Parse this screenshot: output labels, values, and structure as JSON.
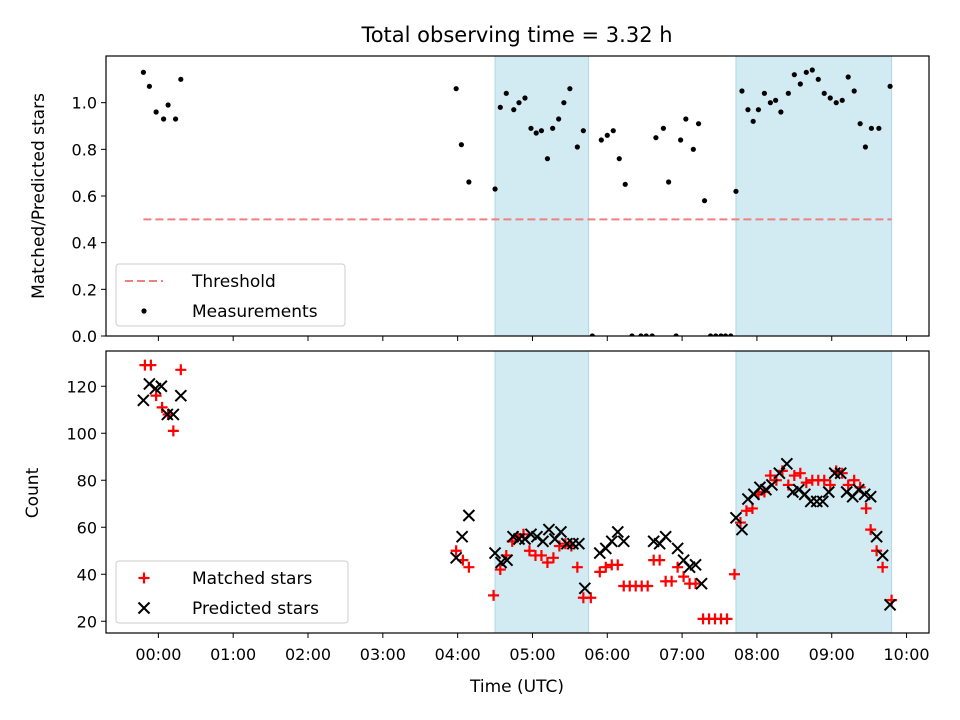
{
  "chart_data": {
    "title": "Total observing time = 3.32 h",
    "xlabel": "Time (UTC)",
    "xlim": [
      -0.7,
      10.3
    ],
    "xticks": [
      0,
      1,
      2,
      3,
      4,
      5,
      6,
      7,
      8,
      9,
      10
    ],
    "xtick_labels": [
      "00:00",
      "01:00",
      "02:00",
      "03:00",
      "04:00",
      "05:00",
      "06:00",
      "07:00",
      "08:00",
      "09:00",
      "10:00"
    ],
    "shaded_intervals": [
      [
        4.5,
        5.75
      ],
      [
        7.72,
        9.8
      ]
    ],
    "shade_color": "#add8e6",
    "panels": [
      {
        "type": "scatter",
        "ylabel": "Matched/Predicted stars",
        "ylim": [
          0,
          1.2
        ],
        "yticks": [
          0.0,
          0.2,
          0.4,
          0.6,
          0.8,
          1.0
        ],
        "ytick_labels": [
          "0.0",
          "0.2",
          "0.4",
          "0.6",
          "0.8",
          "1.0"
        ],
        "legend_position": "lower-left",
        "threshold": {
          "name": "Threshold",
          "y": 0.5,
          "x_range": [
            -0.2,
            9.8
          ],
          "color": "#f08080"
        },
        "series": [
          {
            "name": "Measurements",
            "color": "#000000",
            "marker": "dot",
            "points": [
              [
                -0.2,
                1.13
              ],
              [
                -0.12,
                1.07
              ],
              [
                -0.03,
                0.96
              ],
              [
                0.07,
                0.93
              ],
              [
                0.13,
                0.99
              ],
              [
                0.23,
                0.93
              ],
              [
                0.3,
                1.1
              ],
              [
                3.98,
                1.06
              ],
              [
                4.05,
                0.82
              ],
              [
                4.15,
                0.66
              ],
              [
                4.5,
                0.63
              ],
              [
                4.57,
                0.98
              ],
              [
                4.65,
                1.04
              ],
              [
                4.75,
                0.97
              ],
              [
                4.82,
                1.0
              ],
              [
                4.9,
                1.02
              ],
              [
                4.98,
                0.89
              ],
              [
                5.05,
                0.87
              ],
              [
                5.12,
                0.88
              ],
              [
                5.2,
                0.76
              ],
              [
                5.27,
                0.89
              ],
              [
                5.35,
                0.93
              ],
              [
                5.42,
                1.0
              ],
              [
                5.5,
                1.06
              ],
              [
                5.6,
                0.81
              ],
              [
                5.68,
                0.88
              ],
              [
                5.8,
                0.0
              ],
              [
                5.92,
                0.84
              ],
              [
                6.0,
                0.86
              ],
              [
                6.08,
                0.88
              ],
              [
                6.16,
                0.76
              ],
              [
                6.24,
                0.65
              ],
              [
                6.33,
                0.0
              ],
              [
                6.45,
                0.0
              ],
              [
                6.52,
                0.0
              ],
              [
                6.6,
                0.0
              ],
              [
                6.65,
                0.85
              ],
              [
                6.75,
                0.89
              ],
              [
                6.82,
                0.66
              ],
              [
                6.92,
                0.0
              ],
              [
                6.98,
                0.84
              ],
              [
                7.05,
                0.93
              ],
              [
                7.15,
                0.8
              ],
              [
                7.22,
                0.91
              ],
              [
                7.3,
                0.58
              ],
              [
                7.38,
                0.0
              ],
              [
                7.45,
                0.0
              ],
              [
                7.52,
                0.0
              ],
              [
                7.58,
                0.0
              ],
              [
                7.65,
                0.0
              ],
              [
                7.72,
                0.62
              ],
              [
                7.8,
                1.05
              ],
              [
                7.88,
                0.97
              ],
              [
                7.95,
                0.92
              ],
              [
                8.02,
                0.97
              ],
              [
                8.1,
                1.04
              ],
              [
                8.18,
                1.0
              ],
              [
                8.25,
                1.01
              ],
              [
                8.32,
                0.96
              ],
              [
                8.42,
                1.04
              ],
              [
                8.5,
                1.12
              ],
              [
                8.58,
                1.08
              ],
              [
                8.66,
                1.13
              ],
              [
                8.74,
                1.14
              ],
              [
                8.82,
                1.1
              ],
              [
                8.9,
                1.04
              ],
              [
                8.98,
                1.02
              ],
              [
                9.06,
                1.0
              ],
              [
                9.14,
                1.01
              ],
              [
                9.22,
                1.11
              ],
              [
                9.3,
                1.05
              ],
              [
                9.38,
                0.91
              ],
              [
                9.45,
                0.81
              ],
              [
                9.53,
                0.89
              ],
              [
                9.63,
                0.89
              ],
              [
                9.78,
                1.07
              ]
            ]
          }
        ]
      },
      {
        "type": "scatter",
        "ylabel": "Count",
        "ylim": [
          15,
          135
        ],
        "yticks": [
          20,
          40,
          60,
          80,
          100,
          120
        ],
        "ytick_labels": [
          "20",
          "40",
          "60",
          "80",
          "100",
          "120"
        ],
        "legend_position": "lower-left",
        "series": [
          {
            "name": "Matched stars",
            "color": "#ff0000",
            "marker": "plus",
            "points": [
              [
                -0.18,
                129
              ],
              [
                -0.1,
                129
              ],
              [
                -0.03,
                116
              ],
              [
                0.05,
                111
              ],
              [
                0.13,
                108
              ],
              [
                0.2,
                101
              ],
              [
                0.3,
                127
              ],
              [
                3.98,
                50
              ],
              [
                4.07,
                46
              ],
              [
                4.15,
                43
              ],
              [
                4.48,
                31
              ],
              [
                4.57,
                42
              ],
              [
                4.65,
                48
              ],
              [
                4.73,
                54
              ],
              [
                4.8,
                56
              ],
              [
                4.88,
                57
              ],
              [
                4.96,
                50
              ],
              [
                5.04,
                48
              ],
              [
                5.12,
                48
              ],
              [
                5.2,
                45
              ],
              [
                5.28,
                47
              ],
              [
                5.36,
                52
              ],
              [
                5.44,
                53
              ],
              [
                5.52,
                52
              ],
              [
                5.6,
                43
              ],
              [
                5.68,
                30
              ],
              [
                5.78,
                30
              ],
              [
                5.9,
                41
              ],
              [
                5.98,
                43
              ],
              [
                6.06,
                44
              ],
              [
                6.14,
                44
              ],
              [
                6.22,
                35
              ],
              [
                6.3,
                35
              ],
              [
                6.38,
                35
              ],
              [
                6.46,
                35
              ],
              [
                6.54,
                35
              ],
              [
                6.62,
                46
              ],
              [
                6.7,
                46
              ],
              [
                6.78,
                37
              ],
              [
                6.86,
                37
              ],
              [
                6.94,
                43
              ],
              [
                7.02,
                39
              ],
              [
                7.1,
                36
              ],
              [
                7.18,
                36
              ],
              [
                7.28,
                21
              ],
              [
                7.36,
                21
              ],
              [
                7.44,
                21
              ],
              [
                7.52,
                21
              ],
              [
                7.6,
                21
              ],
              [
                7.7,
                40
              ],
              [
                7.78,
                62
              ],
              [
                7.86,
                67
              ],
              [
                7.94,
                68
              ],
              [
                8.02,
                74
              ],
              [
                8.1,
                75
              ],
              [
                8.18,
                82
              ],
              [
                8.26,
                80
              ],
              [
                8.34,
                84
              ],
              [
                8.42,
                78
              ],
              [
                8.5,
                82
              ],
              [
                8.58,
                83
              ],
              [
                8.66,
                79
              ],
              [
                8.74,
                80
              ],
              [
                8.82,
                80
              ],
              [
                8.9,
                80
              ],
              [
                8.98,
                78
              ],
              [
                9.06,
                84
              ],
              [
                9.14,
                83
              ],
              [
                9.22,
                78
              ],
              [
                9.3,
                80
              ],
              [
                9.38,
                77
              ],
              [
                9.46,
                68
              ],
              [
                9.52,
                59
              ],
              [
                9.6,
                50
              ],
              [
                9.68,
                43
              ],
              [
                9.8,
                29
              ]
            ]
          },
          {
            "name": "Predicted stars",
            "color": "#000000",
            "marker": "x",
            "points": [
              [
                -0.2,
                114
              ],
              [
                -0.12,
                121
              ],
              [
                -0.04,
                119
              ],
              [
                0.04,
                120
              ],
              [
                0.12,
                108
              ],
              [
                0.2,
                108
              ],
              [
                0.3,
                116
              ],
              [
                3.98,
                47
              ],
              [
                4.06,
                56
              ],
              [
                4.15,
                65
              ],
              [
                4.5,
                49
              ],
              [
                4.58,
                45
              ],
              [
                4.66,
                46
              ],
              [
                4.74,
                56
              ],
              [
                4.82,
                55
              ],
              [
                4.9,
                55
              ],
              [
                4.98,
                57
              ],
              [
                5.06,
                56
              ],
              [
                5.14,
                54
              ],
              [
                5.22,
                59
              ],
              [
                5.3,
                55
              ],
              [
                5.38,
                58
              ],
              [
                5.46,
                53
              ],
              [
                5.54,
                53
              ],
              [
                5.62,
                53
              ],
              [
                5.7,
                34
              ],
              [
                5.9,
                49
              ],
              [
                5.98,
                51
              ],
              [
                6.06,
                54
              ],
              [
                6.14,
                58
              ],
              [
                6.22,
                54
              ],
              [
                6.62,
                54
              ],
              [
                6.7,
                53
              ],
              [
                6.78,
                56
              ],
              [
                6.94,
                51
              ],
              [
                7.02,
                46
              ],
              [
                7.1,
                43
              ],
              [
                7.18,
                44
              ],
              [
                7.26,
                36
              ],
              [
                7.72,
                64
              ],
              [
                7.8,
                59
              ],
              [
                7.88,
                72
              ],
              [
                7.96,
                74
              ],
              [
                8.04,
                77
              ],
              [
                8.12,
                76
              ],
              [
                8.2,
                78
              ],
              [
                8.3,
                83
              ],
              [
                8.4,
                87
              ],
              [
                8.48,
                75
              ],
              [
                8.56,
                76
              ],
              [
                8.64,
                74
              ],
              [
                8.72,
                71
              ],
              [
                8.8,
                71
              ],
              [
                8.88,
                71
              ],
              [
                8.96,
                75
              ],
              [
                9.04,
                83
              ],
              [
                9.12,
                83
              ],
              [
                9.2,
                75
              ],
              [
                9.28,
                73
              ],
              [
                9.36,
                76
              ],
              [
                9.44,
                74
              ],
              [
                9.52,
                73
              ],
              [
                9.6,
                56
              ],
              [
                9.68,
                48
              ],
              [
                9.78,
                27
              ]
            ]
          }
        ]
      }
    ]
  }
}
